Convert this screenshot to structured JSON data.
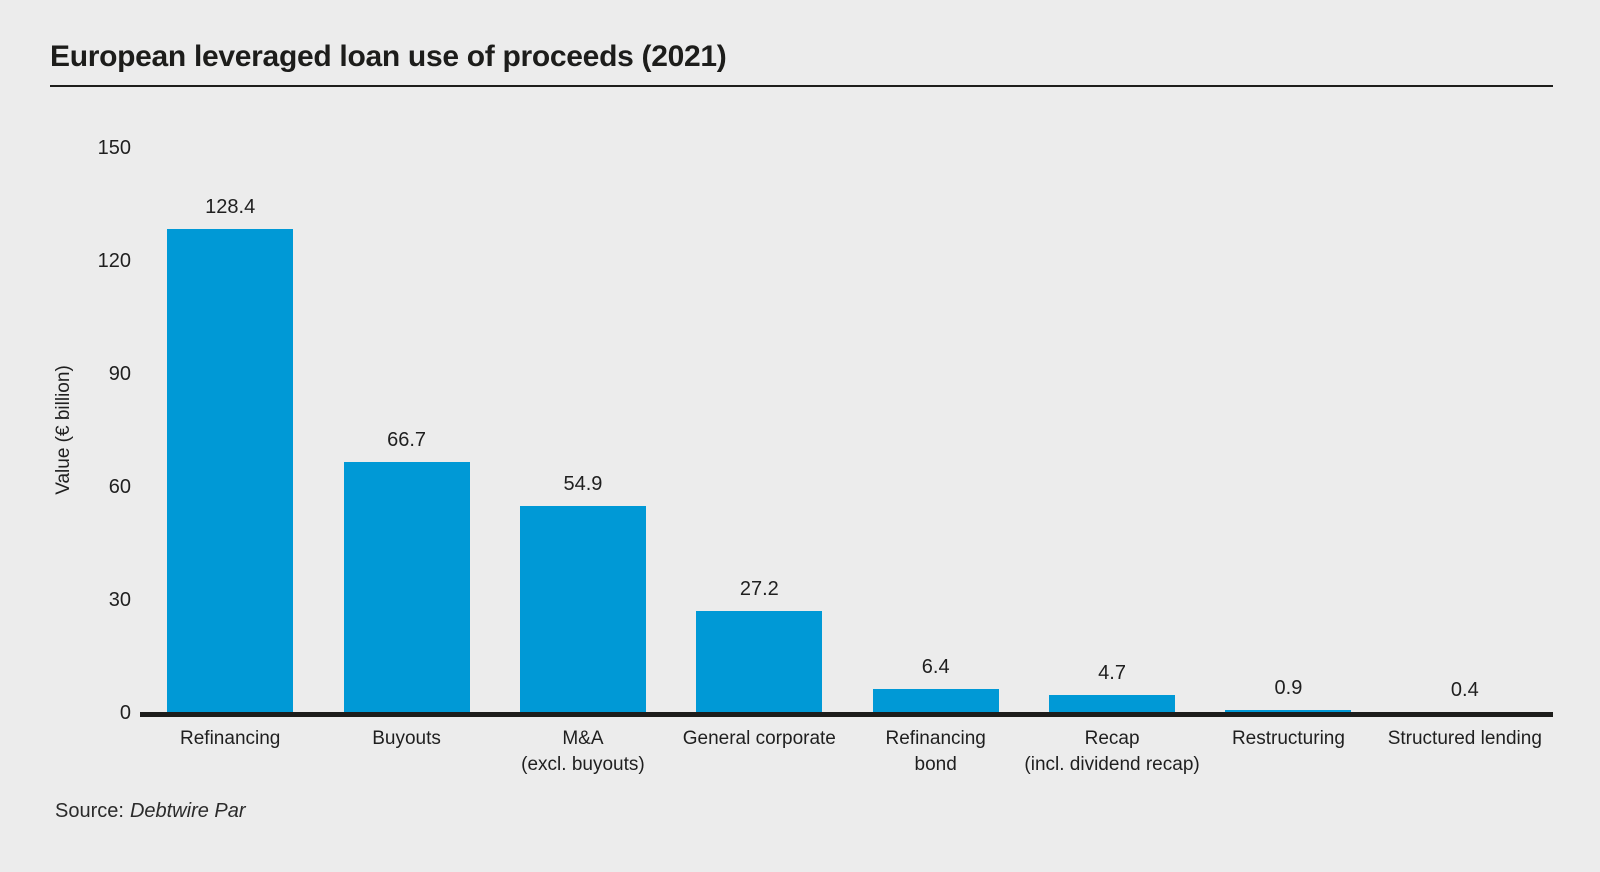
{
  "page": {
    "title": "European leveraged loan use of proceeds (2021)",
    "source_prefix": "Source:",
    "source_name": "Debtwire Par"
  },
  "colors": {
    "background": "#ececec",
    "bar": "#0099d6",
    "axis_line": "#1d1d1b",
    "text": "#1f1f1f",
    "source_text": "#2b2b2b"
  },
  "chart_data": {
    "type": "bar",
    "title": "European leveraged loan use of proceeds (2021)",
    "xlabel": "",
    "ylabel": "Value (€ billion)",
    "ylim": [
      0,
      150
    ],
    "yticks": [
      150,
      120,
      90,
      60,
      30,
      0
    ],
    "grid": false,
    "legend": false,
    "categories": [
      "Refinancing",
      "Buyouts",
      "M&A\n(excl. buyouts)",
      "General corporate",
      "Refinancing\nbond",
      "Recap\n(incl. dividend recap)",
      "Restructuring",
      "Structured lending"
    ],
    "values": [
      128.4,
      66.7,
      54.9,
      27.2,
      6.4,
      4.7,
      0.9,
      0.4
    ],
    "value_labels": [
      "128.4",
      "66.7",
      "54.9",
      "27.2",
      "6.4",
      "4.7",
      "0.9",
      "0.4"
    ],
    "source": "Source: Debtwire Par"
  }
}
